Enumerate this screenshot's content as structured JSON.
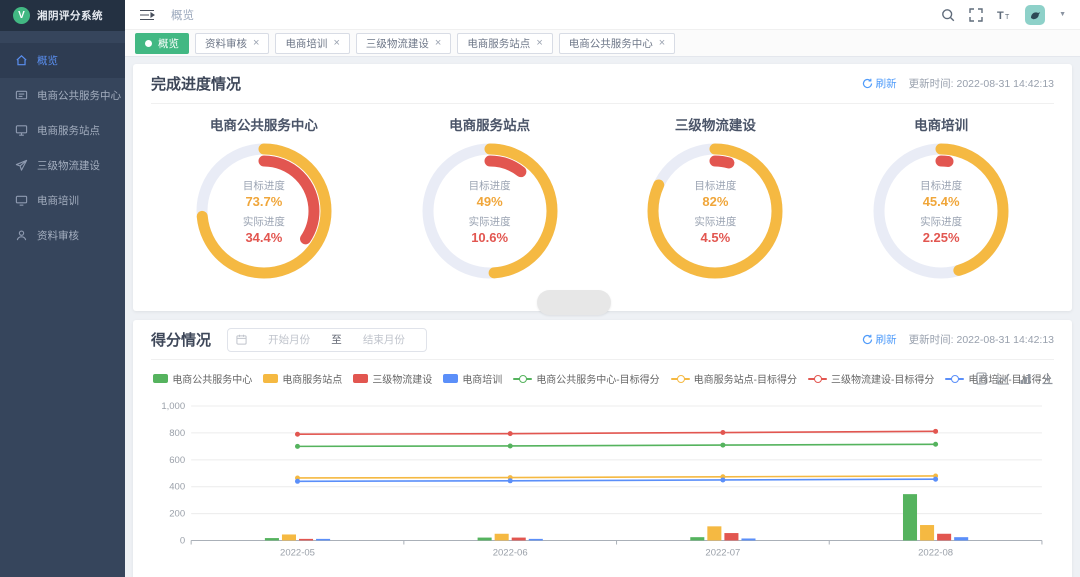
{
  "app": {
    "logo_letter": "V",
    "logo_text": "湘阴评分系统",
    "accent_color": "#42b883"
  },
  "sidebar": {
    "items": [
      {
        "label": "概览",
        "icon": "home-icon",
        "active": true
      },
      {
        "label": "电商公共服务中心",
        "icon": "service-center-icon",
        "active": false
      },
      {
        "label": "电商服务站点",
        "icon": "station-icon",
        "active": false
      },
      {
        "label": "三级物流建设",
        "icon": "logistics-icon",
        "active": false
      },
      {
        "label": "电商培训",
        "icon": "training-icon",
        "active": false
      },
      {
        "label": "资料审核",
        "icon": "audit-icon",
        "active": false
      }
    ]
  },
  "topbar": {
    "breadcrumb": "概览"
  },
  "tabs": [
    {
      "label": "概览",
      "active": true,
      "closable": false
    },
    {
      "label": "资料审核",
      "active": false,
      "closable": true
    },
    {
      "label": "电商培训",
      "active": false,
      "closable": true
    },
    {
      "label": "三级物流建设",
      "active": false,
      "closable": true
    },
    {
      "label": "电商服务站点",
      "active": false,
      "closable": true
    },
    {
      "label": "电商公共服务中心",
      "active": false,
      "closable": true
    }
  ],
  "progress_section": {
    "title": "完成进度情况",
    "refresh_label": "刷新",
    "update_time_label": "更新时间:",
    "update_time": "2022-08-31 14:42:13",
    "target_label": "目标进度",
    "actual_label": "实际进度",
    "colors": {
      "target": "#f5b942",
      "actual": "#e25650",
      "track": "#e9ecf6"
    },
    "donuts": [
      {
        "name": "电商公共服务中心",
        "target": "73.7%",
        "actual": "34.4%",
        "target_value": 73.7,
        "actual_value": 34.4
      },
      {
        "name": "电商服务站点",
        "target": "49%",
        "actual": "10.6%",
        "target_value": 49,
        "actual_value": 10.6
      },
      {
        "name": "三级物流建设",
        "target": "82%",
        "actual": "4.5%",
        "target_value": 82,
        "actual_value": 4.5
      },
      {
        "name": "电商培训",
        "target": "45.4%",
        "actual": "2.25%",
        "target_value": 45.4,
        "actual_value": 2.25
      }
    ]
  },
  "score_section": {
    "title": "得分情况",
    "date_start_placeholder": "开始月份",
    "date_separator": "至",
    "date_end_placeholder": "结束月份",
    "refresh_label": "刷新",
    "update_time_label": "更新时间:",
    "update_time": "2022-08-31 14:42:13"
  },
  "chart_data": {
    "type": "bar",
    "title": "得分情况",
    "categories": [
      "2022-05",
      "2022-06",
      "2022-07",
      "2022-08"
    ],
    "series": [
      {
        "name": "电商公共服务中心",
        "type": "bar",
        "color": "#55b35e",
        "values": [
          18,
          22,
          25,
          345
        ]
      },
      {
        "name": "电商服务站点",
        "type": "bar",
        "color": "#f5b942",
        "values": [
          45,
          50,
          105,
          115
        ]
      },
      {
        "name": "三级物流建设",
        "type": "bar",
        "color": "#e25650",
        "values": [
          10,
          22,
          55,
          50
        ]
      },
      {
        "name": "电商培训",
        "type": "bar",
        "color": "#5b8ff9",
        "values": [
          12,
          12,
          15,
          25
        ]
      },
      {
        "name": "电商公共服务中心-目标得分",
        "type": "line",
        "color": "#55b35e",
        "values": [
          700,
          703,
          710,
          716
        ]
      },
      {
        "name": "电商服务站点-目标得分",
        "type": "line",
        "color": "#f5b942",
        "values": [
          465,
          468,
          474,
          480
        ]
      },
      {
        "name": "三级物流建设-目标得分",
        "type": "line",
        "color": "#e25650",
        "values": [
          790,
          795,
          803,
          812
        ]
      },
      {
        "name": "电商培训-目标得分",
        "type": "line",
        "color": "#5b8ff9",
        "values": [
          440,
          444,
          450,
          456
        ]
      }
    ],
    "xlabel": "",
    "ylabel": "",
    "ylim": [
      0,
      1000
    ],
    "yticks": [
      0,
      200,
      400,
      600,
      800,
      1000
    ],
    "grid": true,
    "legend_position": "top"
  }
}
